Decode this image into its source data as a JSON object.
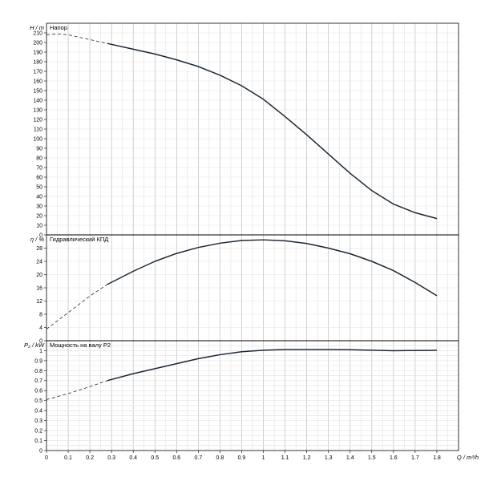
{
  "chart_data": [
    {
      "id": "head",
      "type": "line",
      "title": "Напор",
      "ylabel": "H / m",
      "ylim": [
        0,
        220
      ],
      "ytick_step": 10,
      "ytick_labels": [
        "0",
        "10",
        "20",
        "30",
        "40",
        "50",
        "60",
        "70",
        "80",
        "90",
        "100",
        "110",
        "120",
        "130",
        "140",
        "150",
        "160",
        "170",
        "180",
        "190",
        "200",
        "210",
        "H / m"
      ],
      "grid": true,
      "solid": [
        [
          0.28,
          199
        ],
        [
          0.4,
          193
        ],
        [
          0.5,
          188
        ],
        [
          0.6,
          182
        ],
        [
          0.7,
          175
        ],
        [
          0.8,
          166
        ],
        [
          0.9,
          155
        ],
        [
          1.0,
          141
        ],
        [
          1.1,
          123
        ],
        [
          1.2,
          104
        ],
        [
          1.3,
          84
        ],
        [
          1.4,
          64
        ],
        [
          1.5,
          46
        ],
        [
          1.6,
          32
        ],
        [
          1.7,
          23
        ],
        [
          1.8,
          17
        ]
      ],
      "dashed": [
        [
          0.0,
          208
        ],
        [
          0.05,
          209
        ],
        [
          0.1,
          208
        ],
        [
          0.2,
          203
        ],
        [
          0.28,
          199
        ]
      ]
    },
    {
      "id": "efficiency",
      "type": "line",
      "title": "Гидравлический КПД",
      "ylabel": "η / %",
      "ylim": [
        0,
        32
      ],
      "ytick_step": 4,
      "ytick_labels": [
        "0",
        "4",
        "8",
        "12",
        "16",
        "20",
        "24",
        "28",
        "η / %"
      ],
      "grid": true,
      "solid": [
        [
          0.28,
          17
        ],
        [
          0.4,
          21
        ],
        [
          0.5,
          24
        ],
        [
          0.6,
          26.4
        ],
        [
          0.7,
          28.2
        ],
        [
          0.8,
          29.5
        ],
        [
          0.9,
          30.3
        ],
        [
          1.0,
          30.5
        ],
        [
          1.1,
          30.2
        ],
        [
          1.2,
          29.4
        ],
        [
          1.3,
          28.0
        ],
        [
          1.4,
          26.3
        ],
        [
          1.5,
          24.0
        ],
        [
          1.6,
          21.2
        ],
        [
          1.7,
          17.6
        ],
        [
          1.8,
          13.6
        ]
      ],
      "dashed": [
        [
          0.0,
          3.5
        ],
        [
          0.1,
          8.5
        ],
        [
          0.2,
          13.5
        ],
        [
          0.28,
          17
        ]
      ]
    },
    {
      "id": "power",
      "type": "line",
      "title": "Мощность на валу P2",
      "ylabel": "P₂ / kW",
      "ylim": [
        0,
        1.1
      ],
      "ytick_step": 0.05,
      "ytick_labels": [
        "0",
        "0.1",
        "0.2",
        "0.3",
        "0.4",
        "0.5",
        "0.6",
        "0.7",
        "0.8",
        "0.9",
        "1",
        "P₂ / kW"
      ],
      "grid": true,
      "solid": [
        [
          0.28,
          0.7
        ],
        [
          0.4,
          0.77
        ],
        [
          0.5,
          0.82
        ],
        [
          0.6,
          0.87
        ],
        [
          0.7,
          0.92
        ],
        [
          0.8,
          0.96
        ],
        [
          0.9,
          0.99
        ],
        [
          1.0,
          1.005
        ],
        [
          1.1,
          1.012
        ],
        [
          1.2,
          1.012
        ],
        [
          1.3,
          1.012
        ],
        [
          1.4,
          1.01
        ],
        [
          1.5,
          1.005
        ],
        [
          1.6,
          1.0
        ],
        [
          1.7,
          1.002
        ],
        [
          1.8,
          1.004
        ]
      ],
      "dashed": [
        [
          0.0,
          0.51
        ],
        [
          0.1,
          0.57
        ],
        [
          0.2,
          0.64
        ],
        [
          0.28,
          0.7
        ]
      ]
    }
  ],
  "x_axis": {
    "xlim": [
      0,
      1.9
    ],
    "tick_step": 0.05,
    "tick_labels": [
      "0",
      "0.1",
      "0.2",
      "0.3",
      "0.4",
      "0.5",
      "0.6",
      "0.7",
      "0.8",
      "0.9",
      "1",
      "1.1",
      "1.2",
      "1.3",
      "1.4",
      "1.5",
      "1.6",
      "1.7",
      "1.8"
    ],
    "xlabel": "Q / m³/h"
  },
  "colors": {
    "curve": "#1c2833",
    "grid_minor": "#e2e2e2",
    "grid_major": "#bdbdbd"
  }
}
